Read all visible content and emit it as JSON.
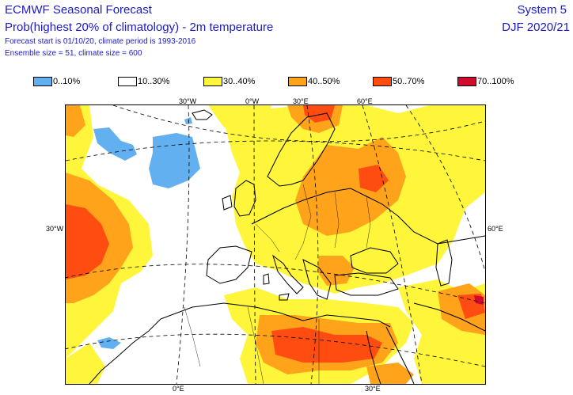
{
  "header": {
    "title": "ECMWF Seasonal Forecast",
    "subtitle": "Prob(highest 20% of climatology) - 2m temperature",
    "forecast_info": "Forecast start is 01/10/20, climate period is 1993-2016",
    "ensemble_info": "Ensemble size = 51, climate size = 600",
    "system": "System 5",
    "period": "DJF 2020/21"
  },
  "legend": [
    {
      "label": "0..10%",
      "color": "#62b0f0"
    },
    {
      "label": "10..30%",
      "color": "#ffffff"
    },
    {
      "label": "30..40%",
      "color": "#fff53a"
    },
    {
      "label": "40..50%",
      "color": "#ffa31a"
    },
    {
      "label": "50..70%",
      "color": "#ff4d12"
    },
    {
      "label": "70..100%",
      "color": "#cf0a2c"
    }
  ],
  "axis_labels": {
    "top": [
      "30°W",
      "0°W",
      "30°E",
      "60°E"
    ],
    "bottom": [
      "0°E",
      "30°E"
    ],
    "left": "30°W",
    "right": "60°E"
  }
}
